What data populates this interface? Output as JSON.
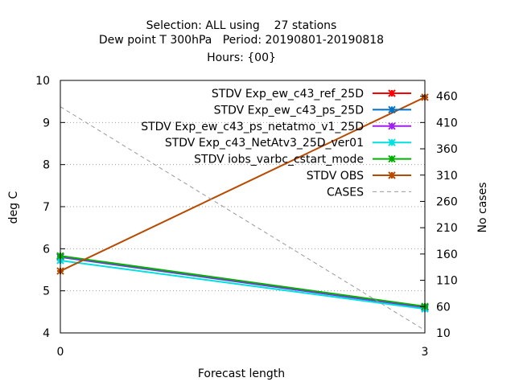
{
  "chart_data": {
    "type": "line",
    "title_lines": [
      "Selection: ALL using    27 stations",
      "Dew point T 300hPa   Period: 20190801-20190818",
      "Hours: {00}"
    ],
    "xlabel": "Forecast length",
    "ylabel": "deg C",
    "y2label": "No cases",
    "x": [
      0,
      3
    ],
    "xticks": [
      "0",
      "3"
    ],
    "xlim": [
      0,
      3
    ],
    "ylim": [
      4,
      10
    ],
    "yticks": [
      "4",
      "5",
      "6",
      "7",
      "8",
      "9",
      "10"
    ],
    "y2lim": [
      10,
      490
    ],
    "y2ticks": [
      "10",
      "60",
      "110",
      "160",
      "210",
      "260",
      "310",
      "360",
      "410",
      "460"
    ],
    "grid": true,
    "legend_position": "top-right",
    "series": [
      {
        "name": "STDV Exp_ew_c43_ref_25D",
        "color": "#ff0000",
        "values": [
          5.82,
          4.62
        ],
        "axis": "left",
        "dash": false
      },
      {
        "name": "STDV Exp_ew_c43_ps_25D",
        "color": "#0072c6",
        "values": [
          5.8,
          4.6
        ],
        "axis": "left",
        "dash": false
      },
      {
        "name": "STDV Exp_ew_c43_ps_netatmo_v1_25D",
        "color": "#a020f0",
        "values": [
          5.81,
          4.61
        ],
        "axis": "left",
        "dash": false
      },
      {
        "name": "STDV Exp_c43_NetAtv3_25D_ver01",
        "color": "#00e0e0",
        "values": [
          5.72,
          4.57
        ],
        "axis": "left",
        "dash": false
      },
      {
        "name": "STDV iobs_varbc_cstart_mode",
        "color": "#00b000",
        "values": [
          5.83,
          4.63
        ],
        "axis": "left",
        "dash": false
      },
      {
        "name": "STDV OBS",
        "color": "#b84a00",
        "values": [
          5.47,
          9.6
        ],
        "axis": "left",
        "dash": false
      },
      {
        "name": "CASES",
        "color": "#999999",
        "values": [
          440,
          15
        ],
        "axis": "right",
        "dash": true
      }
    ]
  }
}
